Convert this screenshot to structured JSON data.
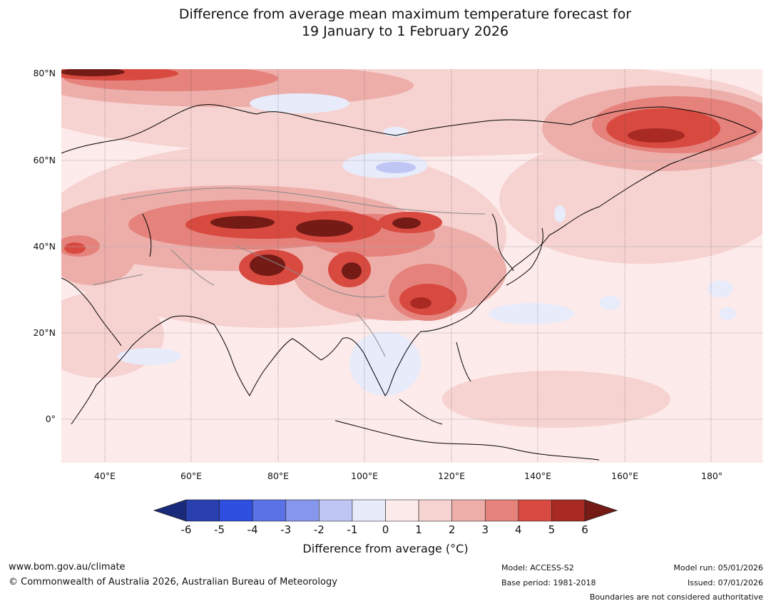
{
  "title_line1": "Difference from average mean maximum temperature forecast for",
  "title_line2": "19 January to 1 February 2026",
  "map": {
    "lon_ticks": [
      "40°E",
      "60°E",
      "80°E",
      "100°E",
      "120°E",
      "140°E",
      "160°E",
      "180°"
    ],
    "lat_ticks": [
      "80°N",
      "60°N",
      "40°N",
      "20°N",
      "0°"
    ],
    "lon_range": [
      30,
      190
    ],
    "lat_range": [
      -10,
      80
    ]
  },
  "colorbar": {
    "label": "Difference from average (°C)",
    "ticks": [
      "-6",
      "-5",
      "-4",
      "-3",
      "-2",
      "-1",
      "0",
      "1",
      "2",
      "3",
      "4",
      "5",
      "6"
    ],
    "colors": [
      "#1a2a7a",
      "#2a3fb0",
      "#2e4fe0",
      "#5b72e6",
      "#8696ec",
      "#bfc6f4",
      "#e8ebfa",
      "#fdeaea",
      "#f6d2d0",
      "#edaeaa",
      "#e5827c",
      "#d84a40",
      "#a82a22",
      "#741b16"
    ]
  },
  "footer": {
    "website": "www.bom.gov.au/climate",
    "copyright": "© Commonwealth of Australia 2026, Australian Bureau of Meteorology",
    "model": "Model: ACCESS-S2",
    "base_period": "Base period: 1981-2018",
    "model_run": "Model run: 05/01/2026",
    "issued": "Issued: 07/01/2026",
    "disclaimer": "Boundaries are not considered authoritative"
  }
}
